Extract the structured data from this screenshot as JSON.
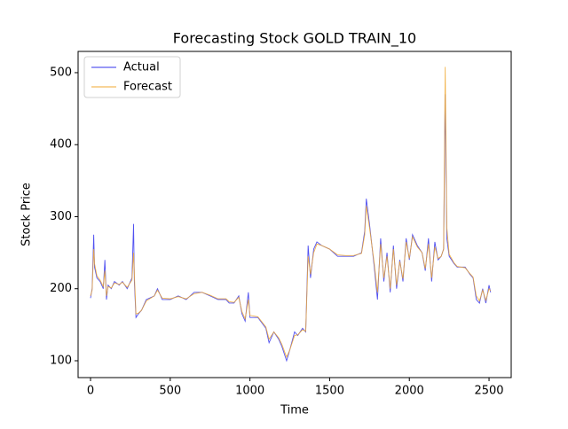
{
  "chart_data": {
    "type": "line",
    "title": "Forecasting Stock GOLD TRAIN_10",
    "x_label": "Time",
    "y_label": "Stock Price",
    "x": [
      0,
      10,
      20,
      25,
      40,
      60,
      80,
      90,
      100,
      110,
      130,
      150,
      180,
      200,
      230,
      260,
      270,
      275,
      285,
      300,
      320,
      350,
      400,
      420,
      450,
      500,
      550,
      600,
      650,
      700,
      750,
      800,
      850,
      870,
      900,
      930,
      950,
      970,
      990,
      1000,
      1050,
      1100,
      1120,
      1150,
      1180,
      1200,
      1230,
      1250,
      1280,
      1300,
      1330,
      1350,
      1365,
      1380,
      1400,
      1420,
      1450,
      1500,
      1550,
      1600,
      1650,
      1700,
      1720,
      1730,
      1750,
      1780,
      1800,
      1820,
      1840,
      1860,
      1880,
      1900,
      1920,
      1940,
      1960,
      1980,
      2000,
      2020,
      2050,
      2080,
      2100,
      2120,
      2140,
      2160,
      2180,
      2200,
      2215,
      2225,
      2235,
      2250,
      2280,
      2300,
      2350,
      2380,
      2400,
      2420,
      2440,
      2460,
      2480,
      2500,
      2510
    ],
    "series": [
      {
        "name": "Actual",
        "color": "#3333ee",
        "values": [
          187,
          200,
          275,
          230,
          215,
          210,
          200,
          240,
          185,
          205,
          200,
          210,
          205,
          210,
          200,
          215,
          290,
          210,
          160,
          165,
          170,
          185,
          190,
          200,
          185,
          185,
          190,
          185,
          195,
          195,
          190,
          185,
          185,
          180,
          180,
          190,
          165,
          155,
          195,
          160,
          160,
          145,
          125,
          140,
          130,
          120,
          100,
          115,
          140,
          135,
          145,
          140,
          260,
          215,
          255,
          265,
          260,
          255,
          245,
          245,
          245,
          250,
          280,
          325,
          290,
          230,
          185,
          270,
          210,
          250,
          195,
          260,
          200,
          240,
          210,
          270,
          240,
          275,
          260,
          250,
          225,
          270,
          210,
          265,
          240,
          245,
          255,
          470,
          270,
          245,
          235,
          230,
          230,
          220,
          215,
          185,
          180,
          200,
          180,
          205,
          195
        ]
      },
      {
        "name": "Forecast",
        "color": "#f0a830",
        "values": [
          190,
          198,
          255,
          235,
          218,
          212,
          203,
          225,
          190,
          203,
          201,
          208,
          206,
          209,
          202,
          212,
          250,
          220,
          165,
          166,
          170,
          183,
          190,
          198,
          187,
          186,
          189,
          186,
          193,
          195,
          191,
          186,
          186,
          182,
          181,
          188,
          168,
          158,
          185,
          163,
          161,
          147,
          130,
          140,
          132,
          123,
          105,
          115,
          135,
          136,
          143,
          141,
          245,
          220,
          250,
          262,
          260,
          255,
          247,
          246,
          246,
          249,
          275,
          315,
          285,
          235,
          195,
          262,
          215,
          245,
          200,
          255,
          205,
          238,
          214,
          265,
          242,
          272,
          258,
          250,
          228,
          262,
          215,
          258,
          242,
          245,
          255,
          508,
          285,
          248,
          236,
          231,
          229,
          221,
          216,
          190,
          183,
          198,
          184,
          200,
          197
        ]
      }
    ],
    "xlim": [
      -78,
      2639
    ],
    "ylim": [
      76.6,
      529.5
    ],
    "xticks": [
      0,
      500,
      1000,
      1500,
      2000,
      2500
    ],
    "yticks": [
      100,
      200,
      300,
      400,
      500
    ],
    "grid": false,
    "legend": "upper-left"
  }
}
